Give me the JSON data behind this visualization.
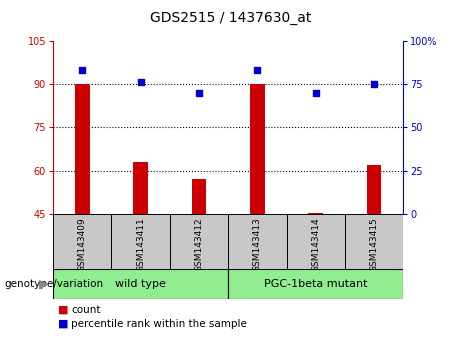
{
  "title": "GDS2515 / 1437630_at",
  "categories": [
    "GSM143409",
    "GSM143411",
    "GSM143412",
    "GSM143413",
    "GSM143414",
    "GSM143415"
  ],
  "bar_values": [
    90,
    63,
    57,
    90,
    45.5,
    62
  ],
  "bar_bottom": 45,
  "percentile_values": [
    83,
    76,
    70,
    83,
    70,
    75
  ],
  "ylim_left": [
    45,
    105
  ],
  "ylim_right": [
    0,
    100
  ],
  "yticks_left": [
    45,
    60,
    75,
    90,
    105
  ],
  "yticks_right": [
    0,
    25,
    50,
    75,
    100
  ],
  "bar_color": "#cc0000",
  "dot_color": "#0000cc",
  "bg_color_gray": "#c8c8c8",
  "bg_color_green": "#90ee90",
  "group1_label": "wild type",
  "group2_label": "PGC-1beta mutant",
  "genotype_label": "genotype/variation",
  "legend_count": "count",
  "legend_percentile": "percentile rank within the sample",
  "left_axis_color": "#cc0000",
  "right_axis_color": "#0000cc",
  "bar_width": 0.25
}
